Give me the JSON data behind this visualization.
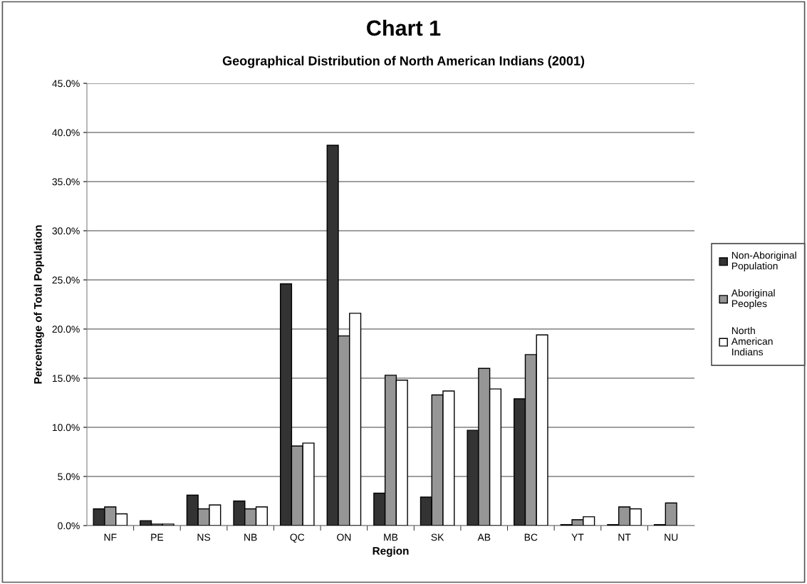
{
  "chart_data": {
    "type": "bar",
    "title": "Chart 1",
    "subtitle": "Geographical Distribution of North American Indians (2001)",
    "xlabel": "Region",
    "ylabel": "Percentage of Total Population",
    "categories": [
      "NF",
      "PE",
      "NS",
      "NB",
      "QC",
      "ON",
      "MB",
      "SK",
      "AB",
      "BC",
      "YT",
      "NT",
      "NU"
    ],
    "series": [
      {
        "name": "Non-Aboriginal Population",
        "color": "#333333",
        "values": [
          1.7,
          0.5,
          3.1,
          2.5,
          24.6,
          38.7,
          3.3,
          2.9,
          9.7,
          12.9,
          0.1,
          0.1,
          0.1
        ]
      },
      {
        "name": "Aboriginal Peoples",
        "color": "#969696",
        "values": [
          1.9,
          0.15,
          1.7,
          1.7,
          8.1,
          19.3,
          15.3,
          13.3,
          16.0,
          17.4,
          0.6,
          1.9,
          2.3
        ]
      },
      {
        "name": "North American Indians",
        "color": "#ffffff",
        "values": [
          1.2,
          0.15,
          2.1,
          1.9,
          8.4,
          21.6,
          14.8,
          13.7,
          13.9,
          19.4,
          0.9,
          1.7,
          null
        ]
      }
    ],
    "ylim": [
      0,
      45
    ],
    "yticks": [
      {
        "value": 0,
        "label": "0.0%"
      },
      {
        "value": 5,
        "label": "5.0%"
      },
      {
        "value": 10,
        "label": "10.0%"
      },
      {
        "value": 15,
        "label": "15.0%"
      },
      {
        "value": 20,
        "label": "20.0%"
      },
      {
        "value": 25,
        "label": "25.0%"
      },
      {
        "value": 30,
        "label": "30.0%"
      },
      {
        "value": 35,
        "label": "35.0%"
      },
      {
        "value": 40,
        "label": "40.0%"
      },
      {
        "value": 45,
        "label": "45.0%"
      }
    ],
    "grid": "y",
    "legend": "right"
  }
}
